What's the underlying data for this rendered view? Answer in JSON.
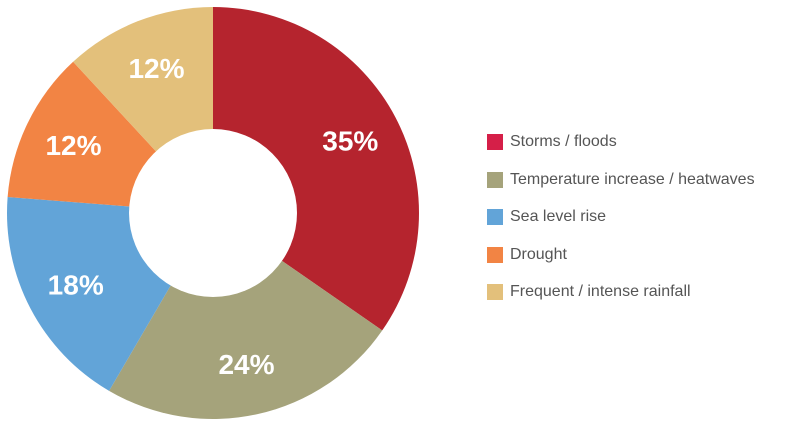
{
  "chart_data": {
    "type": "pie",
    "variant": "donut",
    "title": "",
    "categories": [
      "Storms / floods",
      "Temperature increase / heatwaves",
      "Sea level rise",
      "Drought",
      "Frequent / intense rainfall"
    ],
    "values": [
      35,
      24,
      18,
      12,
      12
    ],
    "value_labels": [
      "35%",
      "24%",
      "18%",
      "12%",
      "12%"
    ],
    "unit": "%",
    "slice_colors": [
      "#b5242e",
      "#a5a37b",
      "#62a4d8",
      "#f28444",
      "#e3c07b"
    ],
    "legend_colors": [
      "#d51f48",
      "#a5a37b",
      "#62a4d8",
      "#f28444",
      "#e3c07b"
    ],
    "legend_position": "right"
  }
}
